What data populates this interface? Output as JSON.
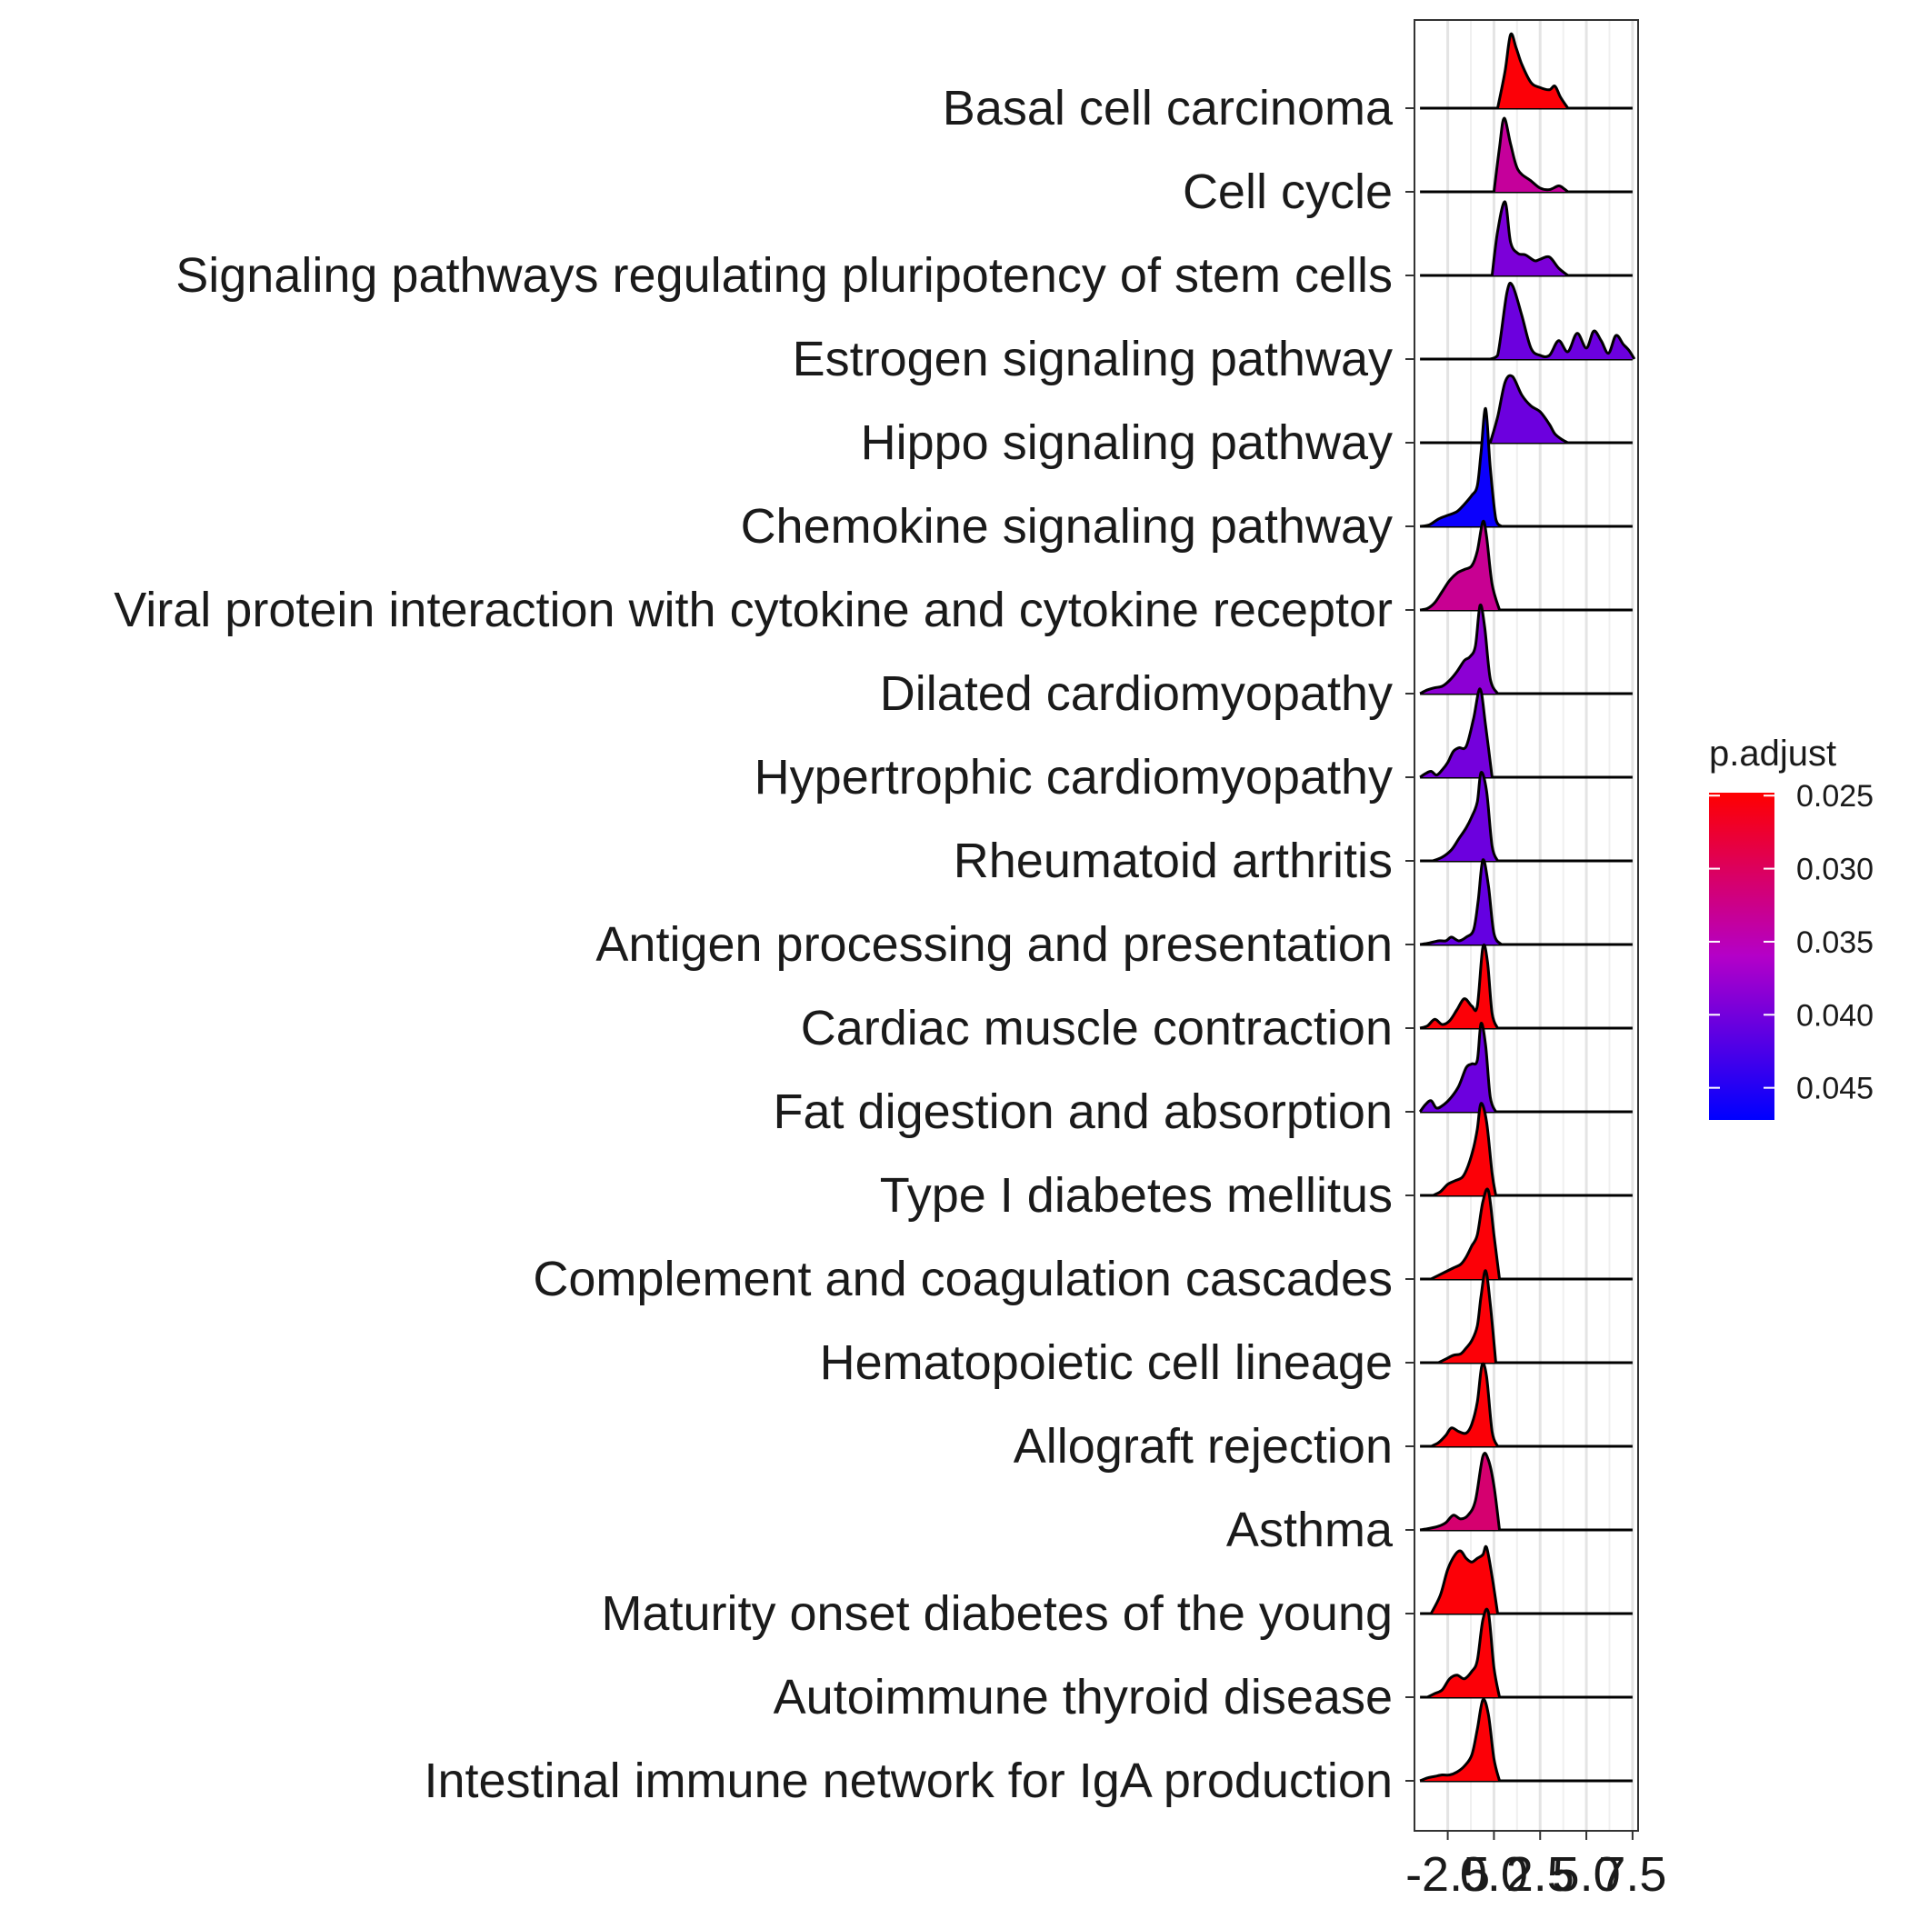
{
  "chart_data": {
    "type": "ridgeline",
    "categories": [
      "Basal cell carcinoma",
      "Cell cycle",
      "Signaling pathways regulating pluripotency of stem cells",
      "Estrogen signaling pathway",
      "Hippo signaling pathway",
      "Chemokine signaling pathway",
      "Viral protein interaction with cytokine and cytokine receptor",
      "Dilated cardiomyopathy",
      "Hypertrophic cardiomyopathy",
      "Rheumatoid arthritis",
      "Antigen processing and presentation",
      "Cardiac muscle contraction",
      "Fat digestion and absorption",
      "Type I diabetes mellitus",
      "Complement and coagulation cascades",
      "Hematopoietic cell lineage",
      "Allograft rejection",
      "Asthma",
      "Maturity onset diabetes of the young",
      "Autoimmune thyroid disease",
      "Intestinal immune network for IgA production"
    ],
    "p_adjust": [
      0.0252,
      0.0335,
      0.0395,
      0.0405,
      0.0405,
      0.0465,
      0.033,
      0.0385,
      0.04,
      0.0405,
      0.041,
      0.0252,
      0.0405,
      0.0252,
      0.0252,
      0.0252,
      0.0252,
      0.031,
      0.0252,
      0.0252,
      0.0252
    ],
    "xlim": [
      -4.3,
      7.8
    ],
    "x_ticks": [
      -2.5,
      0.0,
      2.5,
      5.0,
      7.5
    ],
    "x_tick_labels": [
      "-2.5",
      "0.0",
      "2.5",
      "5.0",
      "7.5"
    ],
    "ridge_height_scale": 0.88,
    "densities": [
      {
        "x": [
          0.2,
          0.6,
          0.9,
          1.2,
          1.5,
          2.0,
          2.5,
          3.0,
          3.3,
          3.6,
          4.0
        ],
        "y": [
          0,
          0.5,
          1.0,
          0.82,
          0.6,
          0.35,
          0.28,
          0.25,
          0.3,
          0.15,
          0
        ]
      },
      {
        "x": [
          0.0,
          0.3,
          0.55,
          0.9,
          1.3,
          2.0,
          2.5,
          3.0,
          3.5,
          3.8,
          4.0
        ],
        "y": [
          0,
          0.6,
          1.0,
          0.65,
          0.3,
          0.15,
          0.05,
          0.03,
          0.08,
          0.04,
          0
        ]
      },
      {
        "x": [
          -0.1,
          0.2,
          0.6,
          0.9,
          1.3,
          1.7,
          2.2,
          2.5,
          3.0,
          3.5,
          4.0
        ],
        "y": [
          0,
          0.6,
          1.0,
          0.45,
          0.3,
          0.28,
          0.2,
          0.22,
          0.25,
          0.1,
          0
        ]
      },
      {
        "x": [
          -0.2,
          0.2,
          0.7,
          1.0,
          1.5,
          2.0,
          2.5,
          3.0,
          3.5,
          4.0,
          4.5,
          5.0,
          5.4,
          5.8,
          6.2,
          6.6,
          7.0,
          7.3,
          7.6
        ],
        "y": [
          0,
          0.05,
          0.9,
          1.0,
          0.6,
          0.15,
          0.05,
          0.05,
          0.25,
          0.1,
          0.35,
          0.15,
          0.38,
          0.25,
          0.08,
          0.32,
          0.2,
          0.12,
          0
        ]
      },
      {
        "x": [
          -0.2,
          0.2,
          0.6,
          1.0,
          1.5,
          2.0,
          2.5,
          3.0,
          3.3,
          3.7,
          4.0
        ],
        "y": [
          0,
          0.35,
          0.82,
          0.9,
          0.65,
          0.5,
          0.42,
          0.25,
          0.12,
          0.04,
          0
        ]
      },
      {
        "x": [
          -4.0,
          -3.5,
          -3.0,
          -2.5,
          -2.0,
          -1.6,
          -1.2,
          -0.9,
          -0.7,
          -0.45,
          -0.2,
          0.1,
          0.4
        ],
        "y": [
          0,
          0.02,
          0.1,
          0.15,
          0.2,
          0.3,
          0.42,
          0.55,
          1.0,
          1.6,
          0.8,
          0.1,
          0
        ]
      },
      {
        "x": [
          -4.0,
          -3.6,
          -3.2,
          -2.8,
          -2.4,
          -2.0,
          -1.6,
          -1.2,
          -0.9,
          -0.6,
          -0.4,
          -0.1,
          0.3
        ],
        "y": [
          0,
          0.02,
          0.1,
          0.25,
          0.4,
          0.5,
          0.55,
          0.6,
          0.8,
          1.2,
          1.0,
          0.35,
          0
        ]
      },
      {
        "x": [
          -4.0,
          -3.6,
          -3.2,
          -2.8,
          -2.4,
          -2.0,
          -1.6,
          -1.3,
          -1.0,
          -0.75,
          -0.5,
          -0.2,
          0.2
        ],
        "y": [
          0,
          0.05,
          0.08,
          0.1,
          0.18,
          0.3,
          0.45,
          0.5,
          0.65,
          1.2,
          0.9,
          0.2,
          0
        ]
      },
      {
        "x": [
          -4.0,
          -3.7,
          -3.4,
          -3.1,
          -2.8,
          -2.5,
          -2.2,
          -1.9,
          -1.5,
          -1.1,
          -0.75,
          -0.45,
          -0.1
        ],
        "y": [
          0,
          0.05,
          0.08,
          0.03,
          0.1,
          0.2,
          0.35,
          0.4,
          0.42,
          0.8,
          1.2,
          0.7,
          0
        ]
      },
      {
        "x": [
          -3.3,
          -2.8,
          -2.3,
          -1.9,
          -1.5,
          -1.2,
          -0.9,
          -0.7,
          -0.4,
          -0.1,
          0.2
        ],
        "y": [
          0,
          0.05,
          0.15,
          0.3,
          0.45,
          0.6,
          0.8,
          1.2,
          0.95,
          0.2,
          0
        ]
      },
      {
        "x": [
          -4.0,
          -3.5,
          -3.0,
          -2.6,
          -2.3,
          -1.9,
          -1.5,
          -1.1,
          -0.85,
          -0.6,
          -0.3,
          0.0,
          0.4
        ],
        "y": [
          0,
          0.02,
          0.05,
          0.05,
          0.1,
          0.05,
          0.1,
          0.2,
          0.6,
          1.15,
          0.8,
          0.15,
          0
        ]
      },
      {
        "x": [
          -4.0,
          -3.6,
          -3.2,
          -2.8,
          -2.4,
          -2.0,
          -1.6,
          -1.2,
          -0.9,
          -0.6,
          -0.35,
          -0.1,
          0.2
        ],
        "y": [
          0,
          0.03,
          0.12,
          0.05,
          0.1,
          0.25,
          0.4,
          0.3,
          0.3,
          1.1,
          0.9,
          0.2,
          0
        ]
      },
      {
        "x": [
          -4.0,
          -3.7,
          -3.4,
          -3.1,
          -2.7,
          -2.3,
          -1.9,
          -1.5,
          -1.2,
          -0.9,
          -0.7,
          -0.45,
          -0.2,
          0.1
        ],
        "y": [
          0,
          0.1,
          0.15,
          0.05,
          0.1,
          0.2,
          0.35,
          0.6,
          0.65,
          0.7,
          1.2,
          0.9,
          0.2,
          0
        ]
      },
      {
        "x": [
          -3.3,
          -2.9,
          -2.5,
          -2.1,
          -1.7,
          -1.4,
          -1.1,
          -0.9,
          -0.7,
          -0.4,
          -0.1,
          0.1
        ],
        "y": [
          0,
          0.05,
          0.15,
          0.2,
          0.25,
          0.4,
          0.65,
          0.9,
          1.25,
          1.0,
          0.3,
          0
        ]
      },
      {
        "x": [
          -3.4,
          -3.0,
          -2.6,
          -2.2,
          -1.8,
          -1.5,
          -1.2,
          -0.9,
          -0.6,
          -0.3,
          0.0,
          0.3
        ],
        "y": [
          0,
          0.05,
          0.1,
          0.15,
          0.2,
          0.3,
          0.45,
          0.6,
          1.05,
          1.2,
          0.6,
          0
        ]
      },
      {
        "x": [
          -3.0,
          -2.6,
          -2.2,
          -1.8,
          -1.5,
          -1.2,
          -0.9,
          -0.7,
          -0.45,
          -0.2,
          0.1
        ],
        "y": [
          0,
          0.05,
          0.1,
          0.12,
          0.2,
          0.3,
          0.5,
          0.9,
          1.25,
          0.8,
          0
        ]
      },
      {
        "x": [
          -3.4,
          -3.0,
          -2.6,
          -2.3,
          -1.9,
          -1.5,
          -1.2,
          -0.9,
          -0.65,
          -0.4,
          -0.1,
          0.2
        ],
        "y": [
          0,
          0.05,
          0.15,
          0.25,
          0.2,
          0.18,
          0.3,
          0.6,
          1.1,
          0.95,
          0.2,
          0
        ]
      },
      {
        "x": [
          -4.0,
          -3.5,
          -3.0,
          -2.6,
          -2.2,
          -1.8,
          -1.4,
          -1.0,
          -0.6,
          -0.3,
          0.0,
          0.3
        ],
        "y": [
          0,
          0.02,
          0.05,
          0.1,
          0.2,
          0.15,
          0.2,
          0.4,
          1.0,
          0.95,
          0.6,
          0
        ]
      },
      {
        "x": [
          -3.4,
          -2.9,
          -2.5,
          -2.1,
          -1.8,
          -1.5,
          -1.2,
          -0.9,
          -0.6,
          -0.4,
          -0.1,
          0.2
        ],
        "y": [
          0,
          0.25,
          0.6,
          0.8,
          0.85,
          0.75,
          0.7,
          0.75,
          0.8,
          0.9,
          0.5,
          0
        ]
      },
      {
        "x": [
          -3.6,
          -3.2,
          -2.8,
          -2.4,
          -2.0,
          -1.6,
          -1.2,
          -0.9,
          -0.6,
          -0.3,
          0.0,
          0.3
        ],
        "y": [
          0,
          0.05,
          0.1,
          0.25,
          0.3,
          0.25,
          0.35,
          0.5,
          1.05,
          1.15,
          0.4,
          0
        ]
      },
      {
        "x": [
          -4.0,
          -3.6,
          -3.2,
          -2.8,
          -2.4,
          -2.0,
          -1.6,
          -1.2,
          -0.9,
          -0.6,
          -0.3,
          0.0,
          0.3
        ],
        "y": [
          0,
          0.04,
          0.06,
          0.08,
          0.08,
          0.12,
          0.2,
          0.35,
          0.7,
          1.1,
          0.9,
          0.3,
          0
        ]
      }
    ],
    "legend": {
      "title": "p.adjust",
      "ticks": [
        0.025,
        0.03,
        0.035,
        0.04,
        0.045
      ],
      "tick_labels": [
        "0.025",
        "0.030",
        "0.035",
        "0.040",
        "0.045"
      ],
      "range": [
        0.0248,
        0.0472
      ],
      "color_low_p": "#ff0000",
      "color_high_p": "#0000ff"
    },
    "grid": true
  }
}
